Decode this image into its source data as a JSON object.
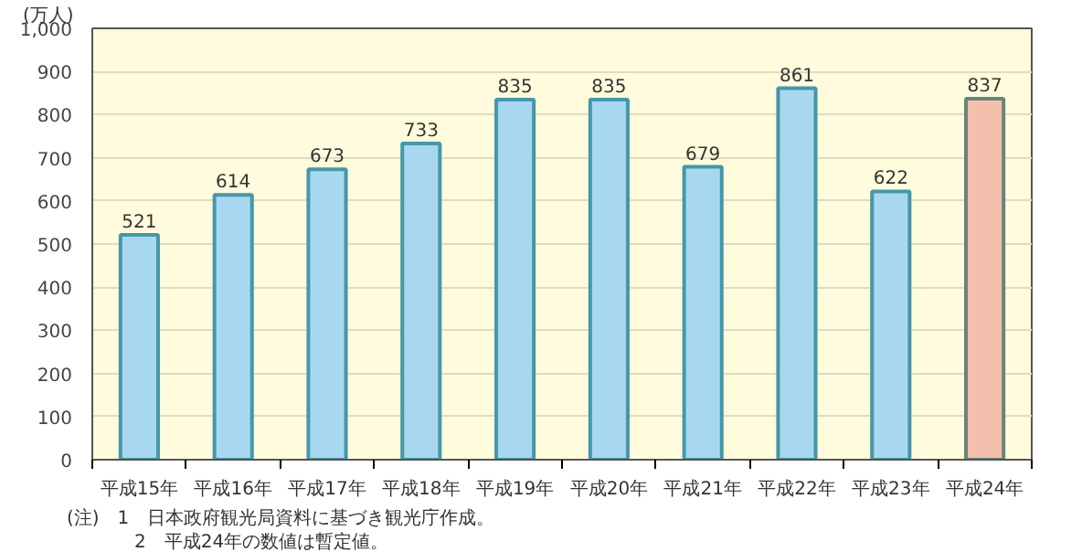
{
  "chart_data": {
    "type": "bar",
    "ylabel": "(万人)",
    "categories": [
      "平成15年",
      "平成16年",
      "平成17年",
      "平成18年",
      "平成19年",
      "平成20年",
      "平成21年",
      "平成22年",
      "平成23年",
      "平成24年"
    ],
    "values": [
      521,
      614,
      673,
      733,
      835,
      835,
      679,
      861,
      622,
      837
    ],
    "colors": [
      "#a8d8f0",
      "#a8d8f0",
      "#a8d8f0",
      "#a8d8f0",
      "#a8d8f0",
      "#a8d8f0",
      "#a8d8f0",
      "#a8d8f0",
      "#a8d8f0",
      "#f5bfae"
    ],
    "ylim": [
      0,
      1000
    ],
    "yticks": [
      0,
      100,
      200,
      300,
      400,
      500,
      600,
      700,
      800,
      900,
      {
        "value": 1000,
        "label": "1,000"
      }
    ],
    "grid": "y",
    "data_labels": true,
    "annotations": [
      "(注)　1　日本政府観光局資料に基づき観光庁作成。",
      "2　平成24年の数値は暫定値。"
    ]
  }
}
